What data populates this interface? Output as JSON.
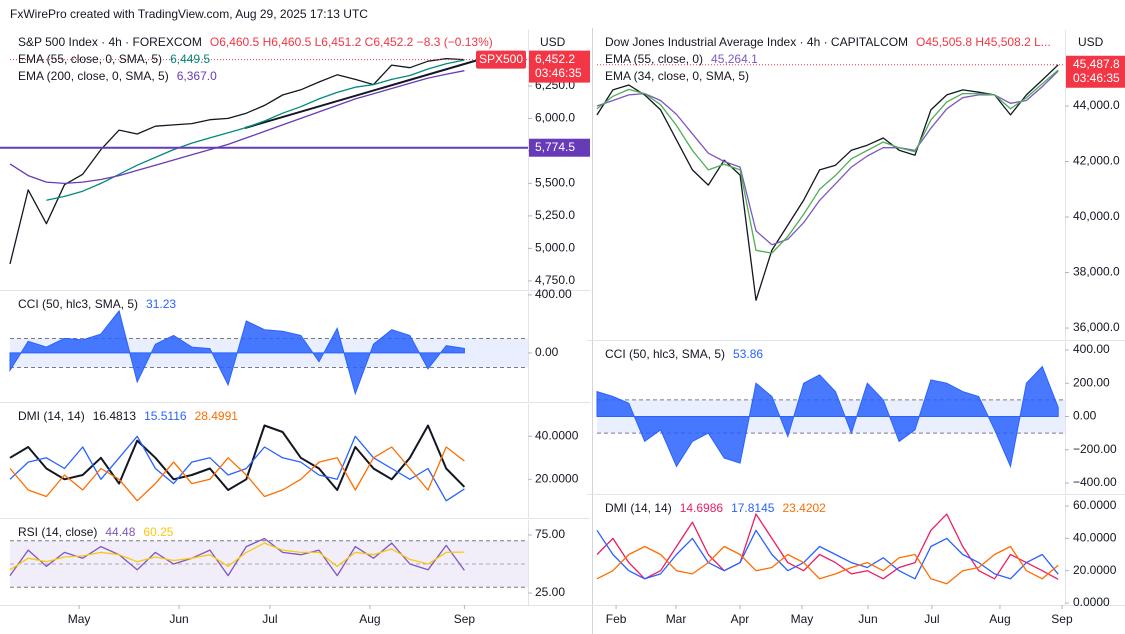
{
  "header": "FxWirePro created with TradingView.com, Aug 29, 2025 17:13 UTC",
  "chart_data": [
    {
      "type": "line",
      "title": "S&P 500 Index · 4h · FOREXCOM",
      "ohlc": "O6,460.5  H6,460.5  L6,451.2  C6,452.2  −8.3 (−0.13%)",
      "currency": "USD",
      "xlim": [
        0,
        28.5
      ],
      "ylim": [
        4680,
        6680
      ],
      "yticks": [
        {
          "value": 6250,
          "label": "6,250.0"
        },
        {
          "value": 6000,
          "label": "6,000.0"
        },
        {
          "value": 5750,
          "label": "5,750.0"
        },
        {
          "value": 5500,
          "label": "5,500.0"
        },
        {
          "value": 5250,
          "label": "5,250.0"
        },
        {
          "value": 5000,
          "label": "5,000.0"
        },
        {
          "value": 4750,
          "label": "4,750.0"
        }
      ],
      "hline": {
        "value": 5774.5,
        "label": "5,774.5",
        "color": "#673ab7"
      },
      "price_tag": {
        "value": 6452.2,
        "label": "6,452.2"
      },
      "countdown": "03:46:35",
      "symbol_tag": "SPX500",
      "series": [
        {
          "color": "#131722",
          "values": [
            4880,
            5450,
            5190,
            5490,
            5570,
            5760,
            5910,
            5880,
            5940,
            5950,
            5960,
            5990,
            6000,
            6040,
            6100,
            6180,
            6220,
            6280,
            6335,
            6300,
            6260,
            6410,
            6390,
            6440,
            6460,
            6452.2
          ]
        },
        {
          "name": "EMA (55, close, 0, SMA, 5)",
          "last_label": "6,449.5",
          "color": "#00897b",
          "values": [
            null,
            null,
            5370,
            5400,
            5440,
            5500,
            5570,
            5640,
            5700,
            5760,
            5810,
            5850,
            5890,
            5930,
            5980,
            6040,
            6090,
            6150,
            6200,
            6240,
            6260,
            6300,
            6330,
            6380,
            6420,
            6449.5
          ]
        },
        {
          "name": "EMA (200, close, 0, SMA, 5)",
          "last_label": "6,367.0",
          "color": "#673ab7",
          "values": [
            5650,
            5560,
            5510,
            5500,
            5510,
            5530,
            5560,
            5600,
            5640,
            5680,
            5720,
            5760,
            5800,
            5850,
            5900,
            5950,
            6000,
            6050,
            6100,
            6150,
            6190,
            6230,
            6270,
            6310,
            6340,
            6367
          ]
        }
      ]
    },
    {
      "type": "area",
      "title": "CCI (50, hlc3, SMA, 5)",
      "xlim": [
        0,
        28.5
      ],
      "ylim": [
        -338,
        420
      ],
      "yticks": [
        {
          "value": 400,
          "label": "400.00"
        },
        {
          "value": 0,
          "label": "0.00"
        }
      ],
      "bands": [
        -100,
        100
      ],
      "band_color": "#2962ff",
      "series": [
        {
          "last_label": "31.23",
          "color": "#2962ff",
          "values": [
            -120,
            80,
            40,
            100,
            90,
            130,
            290,
            -200,
            60,
            120,
            40,
            30,
            -220,
            220,
            160,
            150,
            120,
            -60,
            170,
            -280,
            60,
            160,
            120,
            -110,
            50,
            31.23
          ]
        }
      ]
    },
    {
      "type": "line",
      "title": "DMI (14, 14)",
      "xlim": [
        0,
        28.5
      ],
      "ylim": [
        2,
        55
      ],
      "yticks": [
        {
          "value": 40,
          "label": "40.0000"
        },
        {
          "value": 20,
          "label": "20.0000"
        }
      ],
      "series": [
        {
          "last_label": "16.4813",
          "color": "#131722",
          "width": 2,
          "values": [
            30,
            35,
            25,
            20,
            22,
            30,
            18,
            38,
            30,
            20,
            22,
            25,
            15,
            20,
            45,
            42,
            30,
            25,
            15,
            35,
            25,
            20,
            30,
            45,
            25,
            16.4813
          ]
        },
        {
          "last_label": "15.5116",
          "color": "#2962ff",
          "values": [
            20,
            28,
            30,
            25,
            35,
            20,
            30,
            40,
            25,
            18,
            28,
            30,
            22,
            25,
            35,
            30,
            28,
            22,
            20,
            40,
            30,
            25,
            20,
            25,
            10,
            15.5116
          ]
        },
        {
          "last_label": "28.4991",
          "color": "#ff6d00",
          "values": [
            25,
            15,
            12,
            22,
            15,
            25,
            20,
            10,
            18,
            28,
            18,
            20,
            30,
            22,
            12,
            15,
            20,
            28,
            30,
            15,
            30,
            35,
            25,
            15,
            35,
            28.4991
          ]
        }
      ]
    },
    {
      "type": "line",
      "title": "RSI (14, close)",
      "xlim": [
        0,
        28.5
      ],
      "ylim": [
        14.7,
        87.9
      ],
      "yticks": [
        {
          "value": 75,
          "label": "75.00"
        },
        {
          "value": 25,
          "label": "25.00"
        }
      ],
      "bands": [
        30,
        70
      ],
      "midline": 50,
      "band_color": "#7e57c2",
      "xticks": [
        {
          "value": 3.8,
          "label": "May"
        },
        {
          "value": 9.3,
          "label": "Jun"
        },
        {
          "value": 14.3,
          "label": "Jul"
        },
        {
          "value": 19.8,
          "label": "Aug"
        },
        {
          "value": 25,
          "label": "Sep"
        }
      ],
      "series": [
        {
          "last_label": "44.48",
          "color": "#7e57c2",
          "values": [
            40,
            62,
            48,
            60,
            55,
            65,
            58,
            45,
            60,
            50,
            55,
            62,
            40,
            65,
            72,
            60,
            58,
            62,
            40,
            65,
            55,
            68,
            50,
            45,
            66,
            44.48
          ]
        },
        {
          "last_label": "60.25",
          "color": "#f9c80e",
          "values": [
            45,
            55,
            52,
            56,
            57,
            60,
            58,
            52,
            56,
            53,
            55,
            58,
            48,
            60,
            68,
            62,
            60,
            60,
            48,
            60,
            58,
            63,
            54,
            50,
            60,
            60.25
          ]
        }
      ]
    },
    {
      "type": "line",
      "title": "Dow Jones Industrial Average Index · 4h · CAPITALCOM",
      "ohlc": "O45,505.8  H45,508.2  L...",
      "currency": "USD",
      "xlim": [
        0,
        29.43
      ],
      "ylim": [
        35570,
        46740
      ],
      "yticks": [
        {
          "value": 44000,
          "label": "44,000.0"
        },
        {
          "value": 42000,
          "label": "42,000.0"
        },
        {
          "value": 40000,
          "label": "40,000.0"
        },
        {
          "value": 38000,
          "label": "38,000.0"
        },
        {
          "value": 36000,
          "label": "36,000.0"
        }
      ],
      "price_tag": {
        "value": 45487.8,
        "label": "45,487.8"
      },
      "countdown": "03:46:35",
      "series": [
        {
          "color": "#131722",
          "values": [
            43680,
            44580,
            44760,
            44400,
            43860,
            42780,
            41700,
            41150,
            42050,
            41510,
            37000,
            38810,
            39710,
            40610,
            41700,
            41870,
            42410,
            42590,
            42850,
            42410,
            42230,
            43860,
            44400,
            44580,
            44500,
            44400,
            43680,
            44400,
            44940,
            45487.8
          ]
        },
        {
          "name": "EMA (55, close, 0)",
          "last_label": "45,264.1",
          "color": "#7e57c2",
          "values": [
            44000,
            44200,
            44400,
            44450,
            44200,
            43700,
            43000,
            42300,
            42000,
            41800,
            39500,
            39000,
            39200,
            39800,
            40600,
            41200,
            41800,
            42200,
            42500,
            42500,
            42400,
            43200,
            43900,
            44300,
            44400,
            44400,
            44100,
            44200,
            44700,
            45264.1
          ]
        },
        {
          "name": "EMA (34, close, 0, SMA, 5)",
          "color": "#4caf50",
          "values": [
            43900,
            44350,
            44600,
            44450,
            44050,
            43300,
            42400,
            41700,
            41900,
            41700,
            38800,
            38700,
            39300,
            40100,
            41000,
            41500,
            42100,
            42400,
            42700,
            42500,
            42350,
            43500,
            44150,
            44450,
            44450,
            44400,
            43900,
            44300,
            44800,
            45300
          ]
        }
      ]
    },
    {
      "type": "area",
      "title": "CCI (50, hlc3, SMA, 5)",
      "xlim": [
        0,
        29.43
      ],
      "ylim": [
        -466,
        448
      ],
      "yticks": [
        {
          "value": 400,
          "label": "400.00"
        },
        {
          "value": 200,
          "label": "200.00"
        },
        {
          "value": 0,
          "label": "0.00"
        },
        {
          "value": -200,
          "label": "−200.00"
        },
        {
          "value": -400,
          "label": "−400.00"
        }
      ],
      "bands": [
        -100,
        100
      ],
      "band_color": "#2962ff",
      "series": [
        {
          "last_label": "53.86",
          "color": "#2962ff",
          "values": [
            150,
            120,
            80,
            -150,
            -80,
            -300,
            -150,
            -100,
            -250,
            -280,
            200,
            120,
            -120,
            200,
            250,
            150,
            -100,
            200,
            100,
            -150,
            -80,
            220,
            200,
            150,
            120,
            -80,
            -300,
            200,
            300,
            53.86
          ]
        }
      ]
    },
    {
      "type": "line",
      "title": "DMI (14, 14)",
      "xlim": [
        0,
        29.43
      ],
      "ylim": [
        -1.2,
        66.2
      ],
      "yticks": [
        {
          "value": 60,
          "label": "60.0000"
        },
        {
          "value": 40,
          "label": "40.0000"
        },
        {
          "value": 20,
          "label": "20.0000"
        },
        {
          "value": 0,
          "label": "0.0000"
        }
      ],
      "xticks": [
        {
          "value": 1.2,
          "label": "Feb"
        },
        {
          "value": 4.97,
          "label": "Mar"
        },
        {
          "value": 8.99,
          "label": "Apr"
        },
        {
          "value": 12.89,
          "label": "May"
        },
        {
          "value": 17.04,
          "label": "Jun"
        },
        {
          "value": 21.06,
          "label": "Jul"
        },
        {
          "value": 25.34,
          "label": "Aug"
        },
        {
          "value": 29.24,
          "label": "Sep"
        }
      ],
      "series": [
        {
          "last_label": "14.6986",
          "color": "#e91e63",
          "values": [
            30,
            40,
            25,
            15,
            20,
            35,
            50,
            30,
            20,
            25,
            55,
            40,
            25,
            20,
            30,
            25,
            18,
            20,
            15,
            22,
            25,
            45,
            55,
            35,
            20,
            15,
            30,
            25,
            20,
            14.6986
          ]
        },
        {
          "last_label": "17.8145",
          "color": "#2962ff",
          "values": [
            45,
            30,
            20,
            15,
            18,
            30,
            40,
            25,
            20,
            25,
            45,
            30,
            20,
            25,
            35,
            30,
            25,
            22,
            28,
            20,
            15,
            35,
            40,
            30,
            25,
            18,
            15,
            25,
            30,
            17.8145
          ]
        },
        {
          "last_label": "23.4202",
          "color": "#ff6d00",
          "values": [
            15,
            20,
            30,
            35,
            30,
            20,
            18,
            25,
            35,
            30,
            20,
            22,
            30,
            25,
            15,
            18,
            22,
            25,
            20,
            28,
            30,
            15,
            12,
            20,
            22,
            30,
            35,
            20,
            15,
            23.4202
          ]
        }
      ]
    }
  ]
}
